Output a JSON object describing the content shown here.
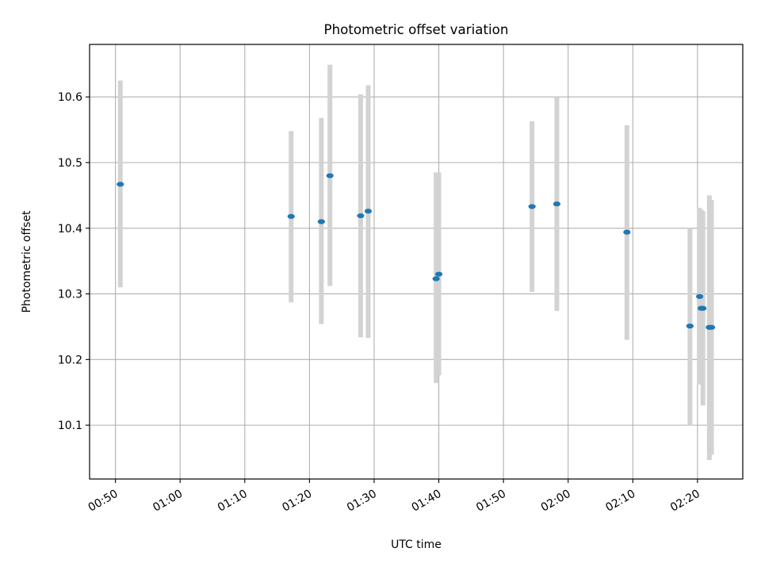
{
  "chart_data": {
    "type": "scatter",
    "title": "Photometric offset variation",
    "xlabel": "UTC time",
    "ylabel": "Photometric offset",
    "grid": true,
    "x_unit": "UTC time (HH:MM)",
    "xlim": [
      "00:46",
      "02:27"
    ],
    "ylim": [
      10.018,
      10.68
    ],
    "x_ticks": [
      "00:50",
      "01:00",
      "01:10",
      "01:20",
      "01:30",
      "01:40",
      "01:50",
      "02:00",
      "02:10",
      "02:20"
    ],
    "y_ticks": [
      "10.1",
      "10.2",
      "10.3",
      "10.4",
      "10.5",
      "10.6"
    ],
    "colors": {
      "point": "#1f77b4",
      "errorbar": "#d3d3d3",
      "grid": "#b0b0b0"
    },
    "series": [
      {
        "points": [
          {
            "x": "00:50:45",
            "y": 10.467,
            "ylow": 10.31,
            "yhigh": 10.625
          },
          {
            "x": "01:17:10",
            "y": 10.418,
            "ylow": 10.287,
            "yhigh": 10.548
          },
          {
            "x": "01:21:50",
            "y": 10.41,
            "ylow": 10.254,
            "yhigh": 10.568
          },
          {
            "x": "01:23:10",
            "y": 10.48,
            "ylow": 10.312,
            "yhigh": 10.649
          },
          {
            "x": "01:27:55",
            "y": 10.419,
            "ylow": 10.234,
            "yhigh": 10.604
          },
          {
            "x": "01:29:05",
            "y": 10.426,
            "ylow": 10.233,
            "yhigh": 10.618
          },
          {
            "x": "01:39:35",
            "y": 10.323,
            "ylow": 10.164,
            "yhigh": 10.485
          },
          {
            "x": "01:40:00",
            "y": 10.33,
            "ylow": 10.176,
            "yhigh": 10.485
          },
          {
            "x": "01:54:25",
            "y": 10.433,
            "ylow": 10.303,
            "yhigh": 10.563
          },
          {
            "x": "01:58:15",
            "y": 10.437,
            "ylow": 10.274,
            "yhigh": 10.6
          },
          {
            "x": "02:09:05",
            "y": 10.394,
            "ylow": 10.23,
            "yhigh": 10.557
          },
          {
            "x": "02:18:50",
            "y": 10.251,
            "ylow": 10.1,
            "yhigh": 10.4
          },
          {
            "x": "02:20:20",
            "y": 10.296,
            "ylow": 10.162,
            "yhigh": 10.431
          },
          {
            "x": "02:20:35",
            "y": 10.278,
            "ylow": 10.163,
            "yhigh": 10.428
          },
          {
            "x": "02:20:50",
            "y": 10.278,
            "ylow": 10.13,
            "yhigh": 10.426
          },
          {
            "x": "02:21:50",
            "y": 10.249,
            "ylow": 10.047,
            "yhigh": 10.45
          },
          {
            "x": "02:22:10",
            "y": 10.249,
            "ylow": 10.055,
            "yhigh": 10.443
          }
        ]
      }
    ]
  }
}
